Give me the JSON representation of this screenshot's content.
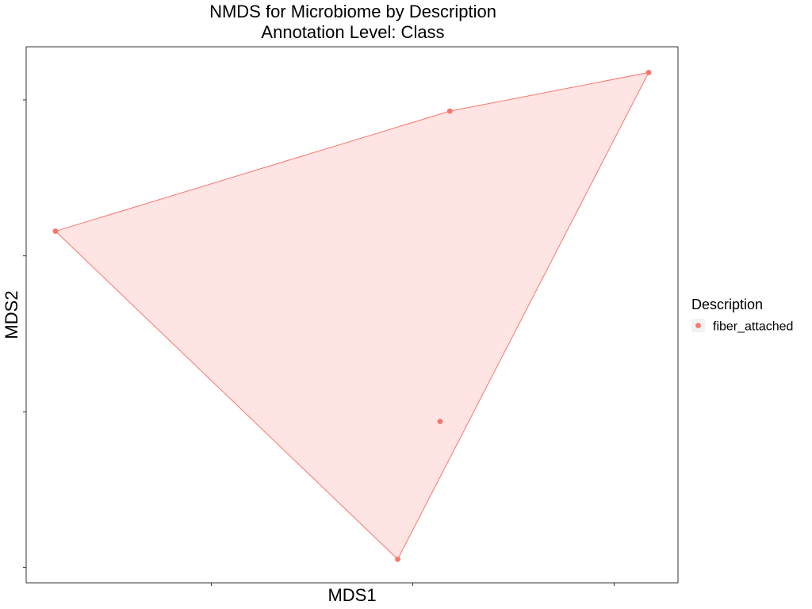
{
  "chart_data": {
    "type": "scatter",
    "title": "NMDS for Microbiome by Description",
    "subtitle": "Annotation Level: Class",
    "xlabel": "MDS1",
    "ylabel": "MDS2",
    "xlim": [
      0,
      100
    ],
    "ylim": [
      0,
      100
    ],
    "show_tick_labels": false,
    "grid": false,
    "hull": true,
    "legend": {
      "position": "right",
      "title": "Description",
      "entries": [
        "fiber_attached"
      ]
    },
    "series": [
      {
        "name": "fiber_attached",
        "color": "#F8766D",
        "points": [
          {
            "x": 4.5,
            "y": 65.6
          },
          {
            "x": 65.0,
            "y": 88.0
          },
          {
            "x": 95.5,
            "y": 95.2
          },
          {
            "x": 63.5,
            "y": 30.1
          },
          {
            "x": 57.0,
            "y": 4.4
          }
        ]
      }
    ]
  }
}
